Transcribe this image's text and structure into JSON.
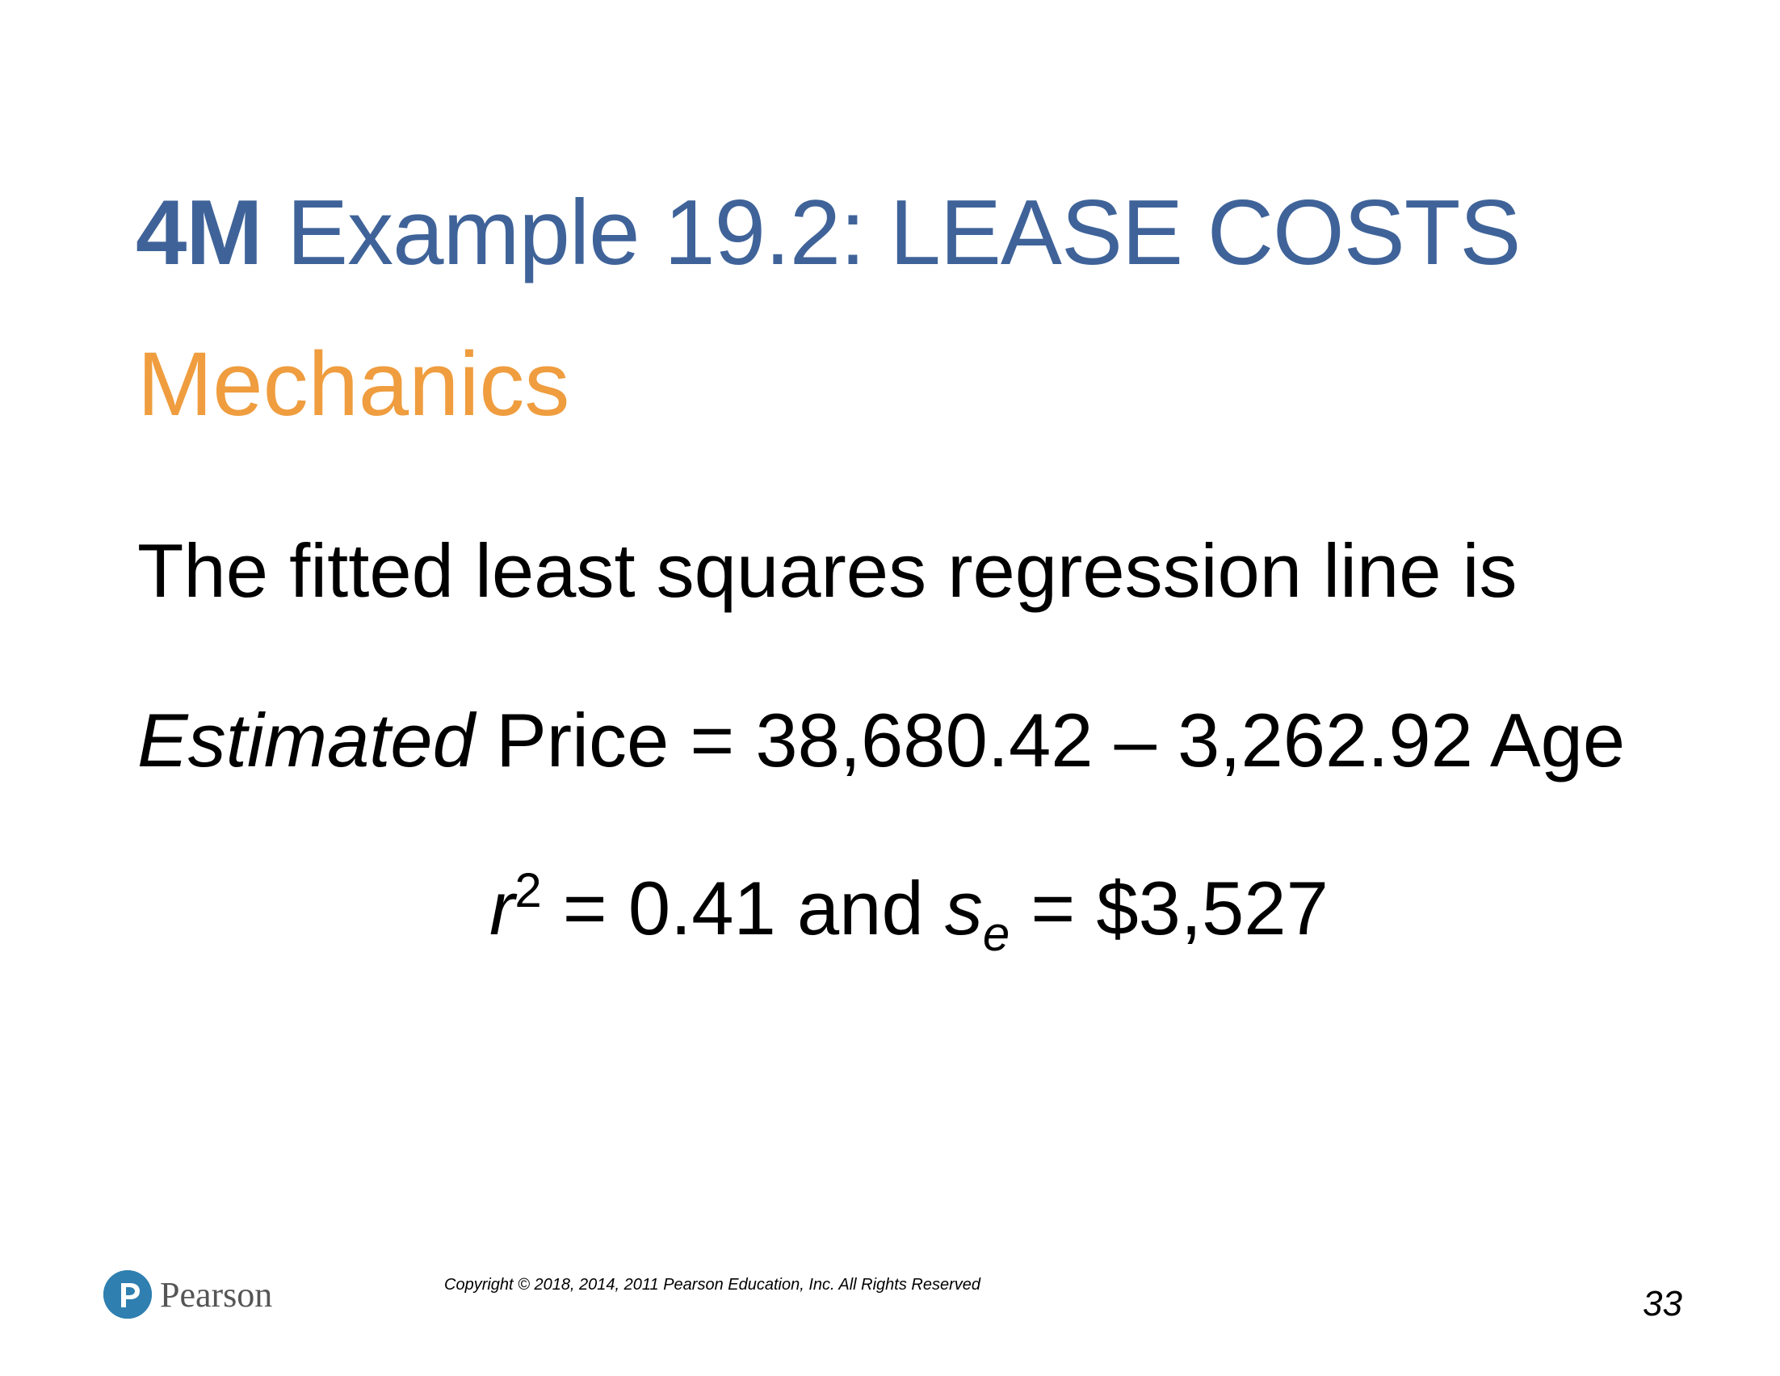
{
  "slide": {
    "title_bold": "4M",
    "title_rest": " Example 19.2:  LEASE COSTS",
    "subtitle": "Mechanics",
    "line1": "The fitted least squares regression line is",
    "equation": {
      "estimated": "Estimated",
      "rest": " Price = 38,680.42 – 3,262.92 Age"
    },
    "stats": {
      "r": "r",
      "r_sup": "2",
      "mid": " = 0.41 and ",
      "s": "s",
      "s_sub": "e",
      "end": " = $3,527"
    }
  },
  "footer": {
    "logo_text": "Pearson",
    "copyright": "Copyright © 2018, 2014, 2011 Pearson Education, Inc. All Rights Reserved",
    "page_number": "33"
  },
  "colors": {
    "title": "#3f6399",
    "subtitle": "#ef9d3f",
    "logo": "#2f7fb0"
  }
}
